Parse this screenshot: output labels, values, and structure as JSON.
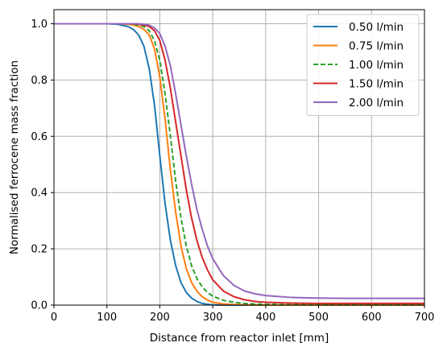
{
  "chart_data": {
    "type": "line",
    "title": "",
    "xlabel": "Distance from reactor inlet [mm]",
    "ylabel": "Normalised ferrocene mass fraction",
    "xlim": [
      0,
      700
    ],
    "ylim": [
      0,
      1.05
    ],
    "xticks": [
      0,
      100,
      200,
      300,
      400,
      500,
      600,
      700
    ],
    "xtick_labels": [
      "0",
      "100",
      "200",
      "300",
      "400",
      "500",
      "600",
      "700"
    ],
    "yticks": [
      0.0,
      0.2,
      0.4,
      0.6,
      0.8,
      1.0
    ],
    "ytick_labels": [
      "0.0",
      "0.2",
      "0.4",
      "0.6",
      "0.8",
      "1.0"
    ],
    "grid": true,
    "legend_position": "top-right",
    "x": [
      0,
      50,
      100,
      120,
      140,
      150,
      160,
      170,
      180,
      190,
      200,
      210,
      220,
      230,
      240,
      250,
      260,
      270,
      280,
      290,
      300,
      320,
      340,
      360,
      380,
      400,
      450,
      500,
      550,
      600,
      650,
      700
    ],
    "series": [
      {
        "name": "0.50 l/min",
        "color": "#1f77b4",
        "dash": "solid",
        "values": [
          1.0,
          1.0,
          1.0,
          0.998,
          0.99,
          0.98,
          0.96,
          0.92,
          0.84,
          0.71,
          0.53,
          0.36,
          0.23,
          0.14,
          0.08,
          0.045,
          0.025,
          0.013,
          0.006,
          0.003,
          0.001,
          0.0,
          0.0,
          0.0,
          0.0,
          0.0,
          0.0,
          0.0,
          0.0,
          0.0,
          0.0,
          0.0
        ]
      },
      {
        "name": "0.75 l/min",
        "color": "#ff7f0e",
        "dash": "solid",
        "values": [
          1.0,
          1.0,
          1.0,
          1.0,
          0.998,
          0.995,
          0.99,
          0.98,
          0.96,
          0.91,
          0.81,
          0.66,
          0.48,
          0.33,
          0.21,
          0.13,
          0.08,
          0.05,
          0.03,
          0.018,
          0.01,
          0.004,
          0.002,
          0.001,
          0.0,
          0.0,
          0.0,
          0.0,
          0.0,
          0.0,
          0.0,
          0.0
        ]
      },
      {
        "name": "1.00 l/min",
        "color": "#2ca02c",
        "dash": "dashed",
        "values": [
          1.0,
          1.0,
          1.0,
          1.0,
          1.0,
          0.998,
          0.995,
          0.99,
          0.975,
          0.94,
          0.87,
          0.75,
          0.6,
          0.44,
          0.31,
          0.21,
          0.14,
          0.095,
          0.065,
          0.045,
          0.032,
          0.017,
          0.01,
          0.006,
          0.004,
          0.003,
          0.0015,
          0.001,
          0.001,
          0.001,
          0.001,
          0.001
        ]
      },
      {
        "name": "1.50 l/min",
        "color": "#d62728",
        "dash": "solid",
        "values": [
          1.0,
          1.0,
          1.0,
          1.0,
          1.0,
          1.0,
          0.998,
          0.995,
          0.99,
          0.975,
          0.94,
          0.87,
          0.77,
          0.65,
          0.53,
          0.41,
          0.31,
          0.23,
          0.17,
          0.125,
          0.09,
          0.05,
          0.03,
          0.019,
          0.013,
          0.01,
          0.007,
          0.006,
          0.006,
          0.006,
          0.006,
          0.006
        ]
      },
      {
        "name": "2.00 l/min",
        "color": "#9467bd",
        "dash": "solid",
        "values": [
          1.0,
          1.0,
          1.0,
          1.0,
          1.0,
          1.0,
          1.0,
          0.998,
          0.995,
          0.985,
          0.965,
          0.92,
          0.85,
          0.75,
          0.64,
          0.53,
          0.43,
          0.34,
          0.27,
          0.21,
          0.165,
          0.105,
          0.07,
          0.05,
          0.04,
          0.034,
          0.027,
          0.025,
          0.024,
          0.024,
          0.024,
          0.024
        ]
      }
    ]
  }
}
